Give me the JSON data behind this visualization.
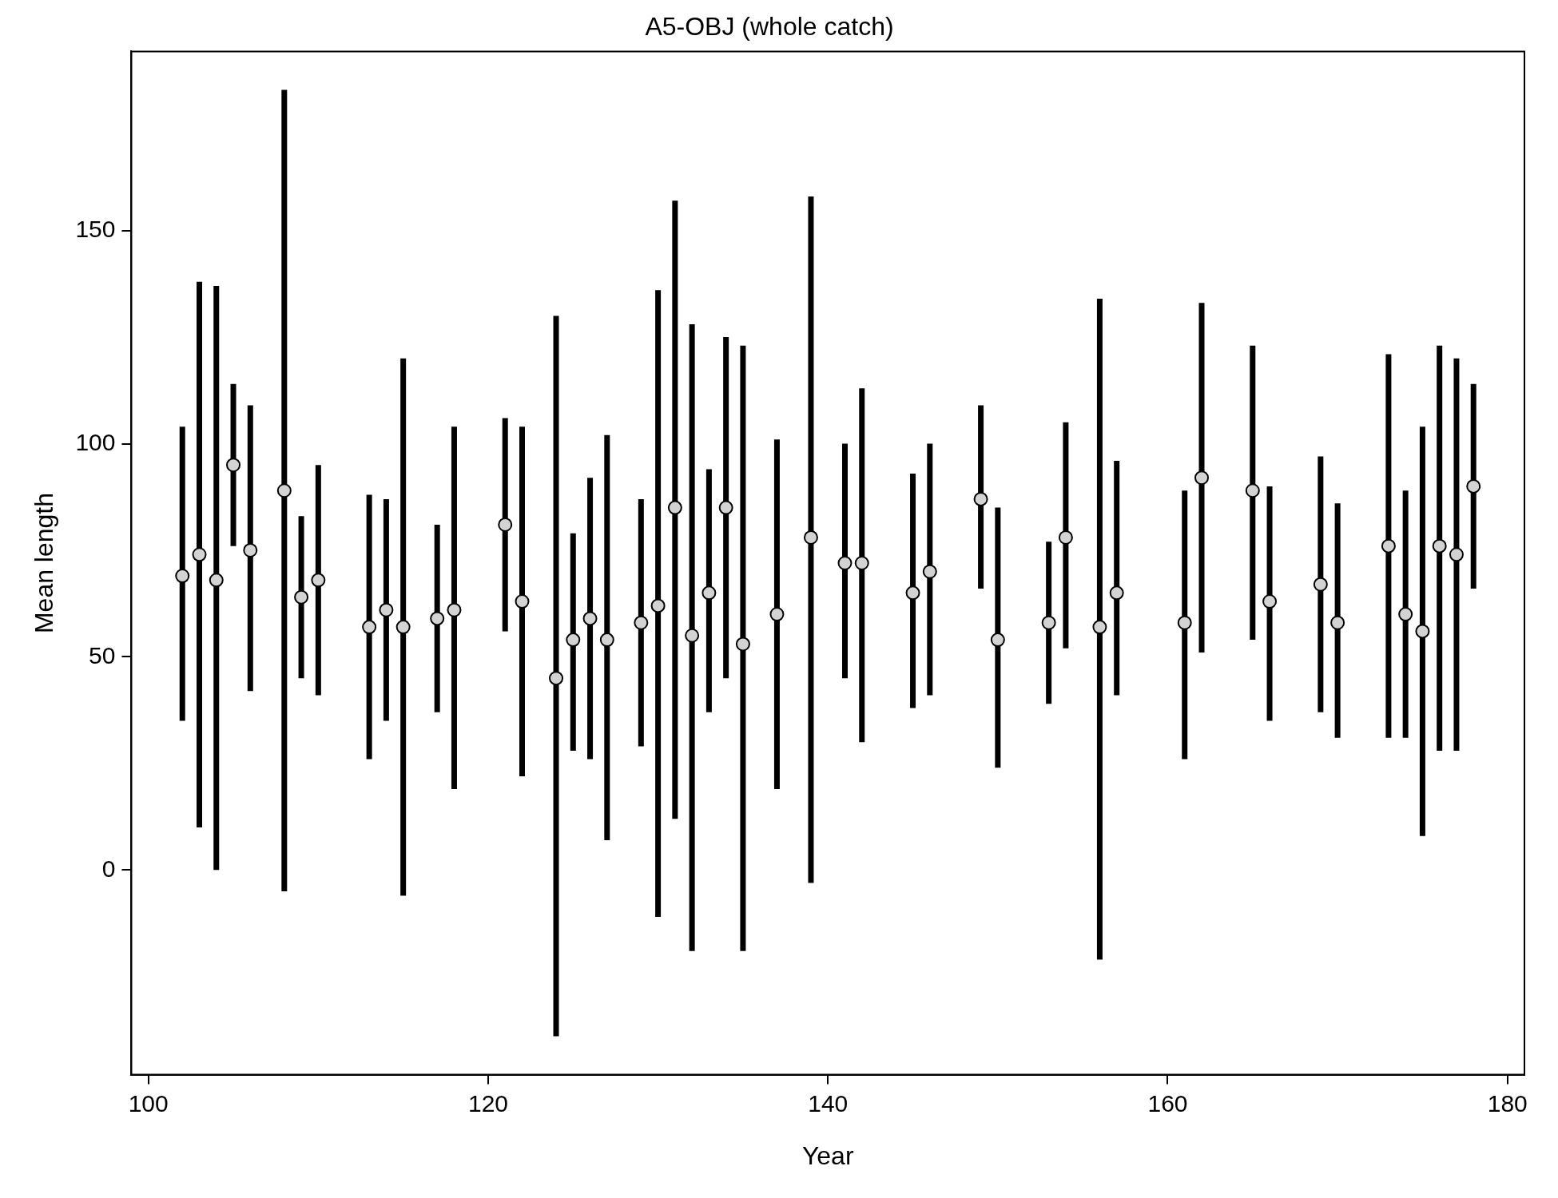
{
  "chart_data": {
    "type": "scatter",
    "title": "A5-OBJ (whole catch)",
    "xlabel": "Year",
    "ylabel": "Mean length",
    "x": [
      102,
      103,
      104,
      105,
      106,
      108,
      109,
      110,
      113,
      114,
      115,
      117,
      118,
      121,
      122,
      124,
      125,
      126,
      127,
      129,
      130,
      131,
      132,
      133,
      134,
      135,
      137,
      139,
      141,
      142,
      145,
      146,
      149,
      150,
      153,
      154,
      156,
      157,
      161,
      162,
      165,
      166,
      169,
      170,
      173,
      174,
      175,
      176,
      177,
      178
    ],
    "values": [
      69,
      74,
      68,
      95,
      75,
      89,
      64,
      68,
      57,
      61,
      57,
      59,
      61,
      81,
      63,
      45,
      54,
      59,
      54,
      58,
      62,
      85,
      55,
      65,
      85,
      53,
      60,
      78,
      72,
      72,
      65,
      70,
      87,
      54,
      58,
      78,
      57,
      65,
      58,
      92,
      89,
      63,
      67,
      58,
      76,
      60,
      56,
      76,
      74,
      90
    ],
    "errors": [
      [
        35,
        104
      ],
      [
        10,
        138
      ],
      [
        0,
        137
      ],
      [
        76,
        114
      ],
      [
        42,
        109
      ],
      [
        -5,
        183
      ],
      [
        45,
        83
      ],
      [
        41,
        95
      ],
      [
        26,
        88
      ],
      [
        35,
        87
      ],
      [
        -6,
        120
      ],
      [
        37,
        81
      ],
      [
        19,
        104
      ],
      [
        56,
        106
      ],
      [
        22,
        104
      ],
      [
        -39,
        130
      ],
      [
        28,
        79
      ],
      [
        26,
        92
      ],
      [
        7,
        102
      ],
      [
        29,
        87
      ],
      [
        -11,
        136
      ],
      [
        12,
        157
      ],
      [
        -19,
        128
      ],
      [
        37,
        94
      ],
      [
        45,
        125
      ],
      [
        -19,
        123
      ],
      [
        19,
        101
      ],
      [
        -3,
        158
      ],
      [
        45,
        100
      ],
      [
        30,
        113
      ],
      [
        38,
        93
      ],
      [
        41,
        100
      ],
      [
        66,
        109
      ],
      [
        24,
        85
      ],
      [
        39,
        77
      ],
      [
        52,
        105
      ],
      [
        -21,
        134
      ],
      [
        41,
        96
      ],
      [
        26,
        89
      ],
      [
        51,
        133
      ],
      [
        54,
        123
      ],
      [
        35,
        90
      ],
      [
        37,
        97
      ],
      [
        31,
        86
      ],
      [
        31,
        121
      ],
      [
        31,
        89
      ],
      [
        8,
        104
      ],
      [
        28,
        123
      ],
      [
        28,
        120
      ],
      [
        66,
        114
      ]
    ],
    "color": "#d3d3d3",
    "marker": "circle",
    "xlim": [
      99,
      181
    ],
    "xticks": [
      100,
      120,
      140,
      160,
      180
    ],
    "ylim": [
      -48,
      192
    ],
    "yticks": [
      0,
      50,
      100,
      150
    ],
    "grid": false,
    "legend": false
  }
}
